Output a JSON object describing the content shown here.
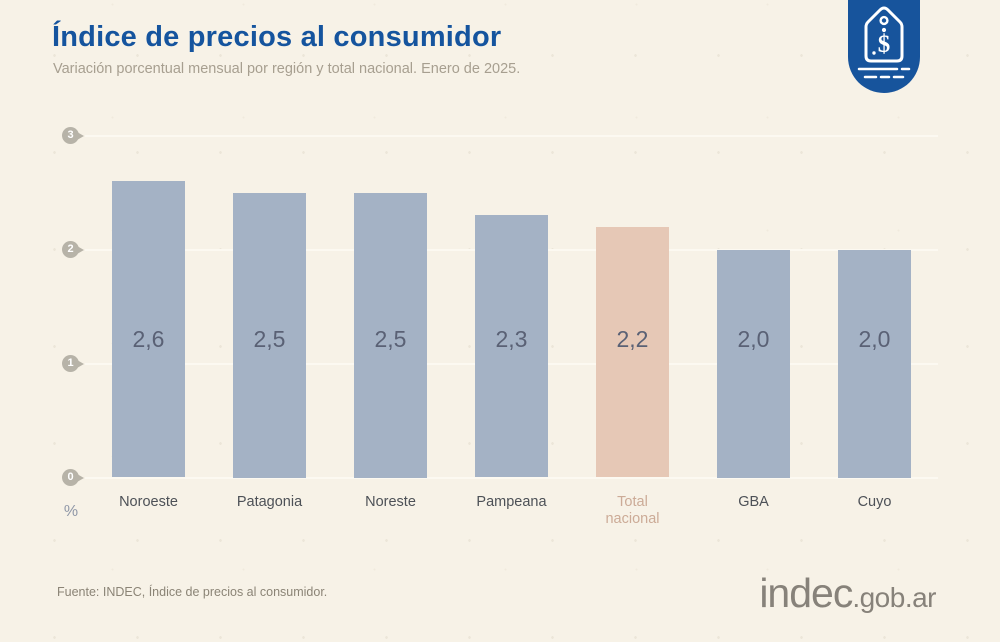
{
  "header": {
    "title": "Índice de precios al consumidor",
    "subtitle": "Variación porcentual mensual por región y total nacional. Enero de 2025."
  },
  "badge": {
    "icon": "price-tag-icon",
    "color": "#17549c",
    "symbol": "$"
  },
  "chart_data": {
    "type": "bar",
    "categories": [
      "Noroeste",
      "Patagonia",
      "Noreste",
      "Pampeana",
      "Total nacional",
      "GBA",
      "Cuyo"
    ],
    "values": [
      2.6,
      2.5,
      2.5,
      2.3,
      2.2,
      2.0,
      2.0
    ],
    "value_labels": [
      "2,6",
      "2,5",
      "2,5",
      "2,3",
      "2,2",
      "2,0",
      "2,0"
    ],
    "highlight_index": 4,
    "title": "Índice de precios al consumidor",
    "subtitle": "Variación porcentual mensual por región y total nacional. Enero de 2025.",
    "xlabel": "",
    "ylabel": "%",
    "yticks": [
      0,
      1,
      2,
      3
    ],
    "ylim": [
      0,
      3
    ],
    "grid": true,
    "legend": false,
    "bar_color": "#a4b2c5",
    "highlight_color": "#e6c8b6"
  },
  "footer": {
    "source": "Fuente: INDEC, Índice de precios al consumidor.",
    "brand": "indec",
    "brand_suffix": ".gob.ar"
  }
}
